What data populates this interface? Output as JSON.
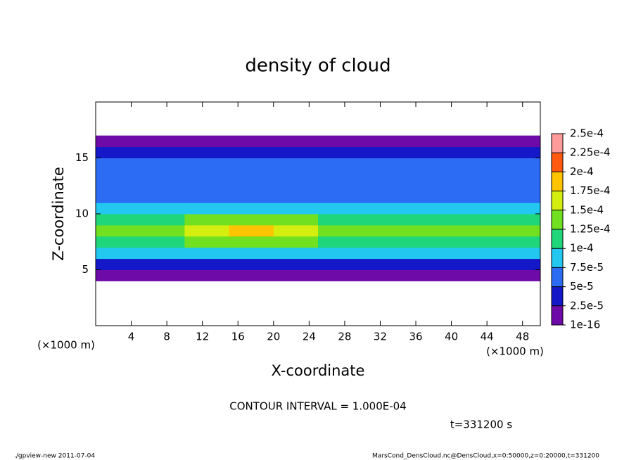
{
  "chart_data": {
    "type": "heatmap",
    "title": "density of cloud",
    "x_label": "X-coordinate",
    "y_label": "Z-coordinate",
    "x_unit": "(×1000 m)",
    "x_unit_right": "(×1000 m)",
    "contour_note": "CONTOUR INTERVAL = 1.000E-04",
    "time_note": "t=331200 s",
    "footer_left": "./gpview-new  2011-07-04",
    "footer_right": "MarsCond_DensCloud.nc@DensCloud,x=0:50000,z=0:20000,t=331200",
    "xlim": [
      0,
      50
    ],
    "ylim": [
      0,
      20
    ],
    "xticks": [
      4,
      8,
      12,
      16,
      20,
      24,
      28,
      32,
      36,
      40,
      44,
      48
    ],
    "yticks": [
      5,
      10,
      15
    ],
    "x": [
      2.5,
      7.5,
      12.5,
      17.5,
      22.5,
      27.5,
      32.5,
      37.5,
      42.5,
      47.5
    ],
    "y": [
      4.5,
      5.5,
      6.5,
      7.5,
      8.5,
      9.5,
      10.5,
      11.5,
      12.5,
      13.5,
      14.5,
      15.5,
      16.5
    ],
    "values": [
      [
        1e-05,
        1e-05,
        1e-05,
        1e-05,
        1e-05,
        1e-05,
        1e-05,
        1e-05,
        1e-05,
        1e-05
      ],
      [
        4e-05,
        3e-05,
        4e-05,
        4e-05,
        4e-05,
        4e-05,
        3e-05,
        4e-05,
        4e-05,
        4e-05
      ],
      [
        8e-05,
        8e-05,
        8e-05,
        8e-05,
        8e-05,
        8e-05,
        8e-05,
        8e-05,
        8e-05,
        8e-05
      ],
      [
        0.00011,
        0.00011,
        0.00013,
        0.00013,
        0.00013,
        0.00011,
        0.00011,
        0.00011,
        0.00011,
        0.00011
      ],
      [
        0.00013,
        0.00013,
        0.00016,
        0.00018,
        0.00016,
        0.00013,
        0.00013,
        0.00013,
        0.00013,
        0.00013
      ],
      [
        0.000115,
        0.000115,
        0.000135,
        0.000135,
        0.000135,
        0.000115,
        0.000115,
        0.000115,
        0.000115,
        0.000115
      ],
      [
        9e-05,
        9e-05,
        9e-05,
        9e-05,
        9e-05,
        9e-05,
        9e-05,
        9e-05,
        9e-05,
        9e-05
      ],
      [
        7e-05,
        7e-05,
        7e-05,
        7e-05,
        7e-05,
        7e-05,
        7e-05,
        7e-05,
        7e-05,
        7e-05
      ],
      [
        6e-05,
        6e-05,
        6e-05,
        6e-05,
        6e-05,
        6e-05,
        6e-05,
        6e-05,
        6e-05,
        6e-05
      ],
      [
        5.5e-05,
        5.5e-05,
        5.5e-05,
        5.5e-05,
        5.5e-05,
        5.5e-05,
        5.5e-05,
        5.5e-05,
        5.5e-05,
        5.5e-05
      ],
      [
        5e-05,
        5e-05,
        5e-05,
        5e-05,
        5e-05,
        5e-05,
        5e-05,
        5e-05,
        5e-05,
        5e-05
      ],
      [
        4e-05,
        4e-05,
        4e-05,
        4e-05,
        4e-05,
        4e-05,
        4e-05,
        4e-05,
        4e-05,
        4e-05
      ],
      [
        1e-05,
        1e-05,
        1e-05,
        1e-05,
        1e-05,
        1e-05,
        1e-05,
        1e-05,
        1e-05,
        1e-05
      ]
    ],
    "levels": [
      {
        "value": 1e-16,
        "label": "1e-16"
      },
      {
        "value": 2.5e-05,
        "label": "2.5e-5"
      },
      {
        "value": 5e-05,
        "label": "5e-5"
      },
      {
        "value": 7.5e-05,
        "label": "7.5e-5"
      },
      {
        "value": 0.0001,
        "label": "1e-4"
      },
      {
        "value": 0.000125,
        "label": "1.25e-4"
      },
      {
        "value": 0.00015,
        "label": "1.5e-4"
      },
      {
        "value": 0.000175,
        "label": "1.75e-4"
      },
      {
        "value": 0.0002,
        "label": "2e-4"
      },
      {
        "value": 0.000225,
        "label": "2.25e-4"
      },
      {
        "value": 0.00025,
        "label": "2.5e-4"
      }
    ],
    "colors": [
      "#6e0ba8",
      "#1418c8",
      "#2c6cf4",
      "#22c8f0",
      "#20d67a",
      "#70e020",
      "#d4ee10",
      "#ffc400",
      "#ff5a10",
      "#ff9a9a"
    ]
  }
}
